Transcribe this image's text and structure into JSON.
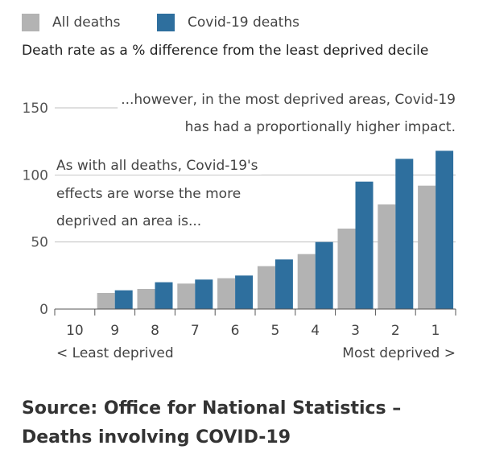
{
  "legend": {
    "all_label": "All deaths",
    "covid_label": "Covid-19 deaths"
  },
  "colors": {
    "all": "#b3b3b3",
    "covid": "#2e6f9e"
  },
  "chart_data": {
    "type": "bar",
    "title": "",
    "subtitle": "Death rate as a % difference from the least deprived decile",
    "categories": [
      "10",
      "9",
      "8",
      "7",
      "6",
      "5",
      "4",
      "3",
      "2",
      "1"
    ],
    "series": [
      {
        "name": "All deaths",
        "values": [
          0,
          12,
          15,
          19,
          23,
          32,
          41,
          60,
          78,
          92
        ]
      },
      {
        "name": "Covid-19 deaths",
        "values": [
          0,
          14,
          20,
          22,
          25,
          37,
          50,
          95,
          112,
          118
        ]
      }
    ],
    "ylim": [
      0,
      150
    ],
    "yticks": [
      0,
      50,
      100,
      150
    ],
    "grid": true,
    "xlabel_left": "< Least deprived",
    "xlabel_right": "Most deprived >",
    "annotations": {
      "top_line1": "...however, in the most deprived areas, Covid-19",
      "top_line2": "has had a proportionally higher impact.",
      "mid_line1": "As with all deaths, Covid-19's",
      "mid_line2": "effects are worse the more",
      "mid_line3": "deprived an area is..."
    }
  },
  "source": {
    "line1": "Source: Office for National Statistics –",
    "line2": "Deaths involving COVID-19"
  }
}
